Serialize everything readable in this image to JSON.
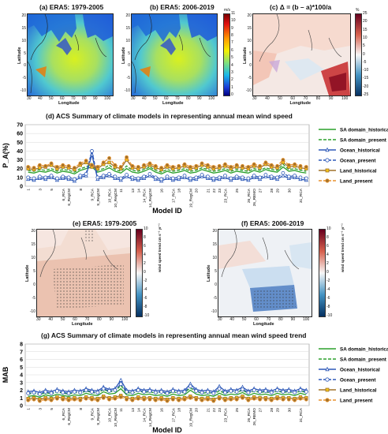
{
  "panels": {
    "a": {
      "title": "(a) ERA5: 1979-2005"
    },
    "b": {
      "title": "(b) ERA5: 2006-2019"
    },
    "c": {
      "title": "(c) Δ = (b – a)*100/a"
    },
    "e": {
      "title": "(e) ERA5: 1979-2005"
    },
    "f": {
      "title": "(f) ERA5: 2006-2019"
    }
  },
  "map_axes": {
    "x_ticks": [
      "30",
      "40",
      "50",
      "60",
      "70",
      "80",
      "90",
      "100"
    ],
    "y_ticks": [
      "20",
      "15",
      "10",
      "5",
      "0",
      "-5",
      "-10"
    ],
    "xlabel": "Longitude",
    "ylabel": "Latitude"
  },
  "colorbars": {
    "speed": {
      "unit": "m/s",
      "ticks": [
        "11",
        "10",
        "9",
        "8",
        "7",
        "6",
        "5",
        "4",
        "3",
        "2",
        "1",
        "0"
      ]
    },
    "change": {
      "unit": "%",
      "ticks": [
        "25",
        "20",
        "15",
        "10",
        "5",
        "0",
        "-5",
        "-10",
        "-15",
        "-20",
        "-25"
      ]
    },
    "trend_e": {
      "label": "wind speed trend   cm s⁻¹ yr⁻¹",
      "ticks": [
        "10",
        "8",
        "6",
        "4",
        "2",
        "0",
        "-2",
        "-4",
        "-6",
        "-8",
        "-10"
      ]
    },
    "trend_f": {
      "label": "wind speed trend   cm s⁻¹ yr⁻¹",
      "ticks": [
        "10",
        "8",
        "6",
        "4",
        "2",
        "0",
        "-2",
        "-4",
        "-6",
        "-8",
        "-10"
      ]
    }
  },
  "legend_labels": {
    "sa_hist": "SA domain_historical",
    "sa_pres": "SA domain_present",
    "oc_hist": "Ocean_historical",
    "oc_pres": "Ocean_present",
    "la_hist": "Land_historical",
    "la_pres": "Land_present"
  },
  "colors": {
    "sa": "#2ca02c",
    "ocean": "#2e59b8",
    "land": "#a0722a",
    "land_pres": "#e8912d",
    "land_fill": "#f5c518"
  },
  "chart_data": [
    {
      "type": "line",
      "title": "(d) ACS Summary of  climate models in representing annual mean wind speed",
      "ylabel": "P_A(%)",
      "xlabel": "Model ID",
      "ylim": [
        0,
        70
      ],
      "yticks": [
        0,
        10,
        20,
        30,
        40,
        50,
        60,
        70
      ],
      "categories": [
        "1",
        "2",
        "3",
        "4",
        "5",
        "6",
        "6_RCA",
        "6_RegCM",
        "7",
        "8",
        "9",
        "9_RCA",
        "9_RegCM",
        "10",
        "10_RCA",
        "10_RegCM",
        "11",
        "12",
        "13",
        "14",
        "14_RCA",
        "14_RegCM",
        "15",
        "16",
        "17",
        "17_RCA",
        "18",
        "19",
        "19_RegCM",
        "20",
        "20_RCA",
        "21",
        "22",
        "23",
        "23_RCA",
        "24",
        "25",
        "26",
        "26_RCA",
        "26_REMO",
        "27",
        "27_RegCM",
        "28",
        "29",
        "29_RCA",
        "30",
        "31",
        "31_RCA",
        "32"
      ],
      "category_labels_shown": [
        "1",
        "3",
        "5",
        "6_RCA",
        "6_RegCM",
        "8",
        "9_RCA",
        "9_RegCM",
        "10_RCA",
        "10_RegCM",
        "11",
        "13",
        "14",
        "14_RCA",
        "14_RegCM",
        "16",
        "17_RCA",
        "18",
        "19_RegCM",
        "20",
        "21",
        "22",
        "23",
        "23_RCA",
        "25",
        "26_RCA",
        "26_REMO",
        "27",
        "28",
        "29",
        "30",
        "31_RCA"
      ],
      "series": [
        {
          "name": "SA domain_historical",
          "values": [
            16,
            15,
            17,
            16,
            18,
            15,
            17,
            16,
            14,
            18,
            20,
            22,
            16,
            18,
            21,
            17,
            15,
            20,
            16,
            15,
            17,
            20,
            16,
            14,
            17,
            15,
            16,
            18,
            15,
            16,
            19,
            17,
            15,
            16,
            18,
            15,
            17,
            16,
            15,
            18,
            16,
            19,
            17,
            16,
            22,
            17,
            18,
            16,
            15
          ]
        },
        {
          "name": "SA domain_present",
          "values": [
            18,
            17,
            19,
            18,
            20,
            17,
            19,
            18,
            16,
            20,
            22,
            26,
            18,
            20,
            24,
            19,
            17,
            23,
            18,
            17,
            19,
            22,
            18,
            16,
            19,
            17,
            18,
            20,
            17,
            18,
            21,
            19,
            17,
            18,
            20,
            17,
            19,
            18,
            17,
            20,
            18,
            21,
            19,
            18,
            25,
            19,
            20,
            18,
            17
          ]
        },
        {
          "name": "Ocean_historical",
          "values": [
            8,
            7,
            9,
            8,
            10,
            7,
            9,
            8,
            6,
            10,
            12,
            36,
            8,
            10,
            12,
            9,
            7,
            11,
            8,
            7,
            9,
            12,
            8,
            6,
            9,
            7,
            8,
            10,
            7,
            8,
            11,
            9,
            7,
            8,
            10,
            7,
            9,
            8,
            7,
            10,
            8,
            11,
            9,
            8,
            12,
            9,
            10,
            8,
            7
          ]
        },
        {
          "name": "Ocean_present",
          "values": [
            10,
            9,
            11,
            10,
            12,
            9,
            11,
            10,
            8,
            12,
            14,
            40,
            10,
            12,
            14,
            11,
            9,
            13,
            10,
            9,
            11,
            14,
            10,
            8,
            11,
            9,
            10,
            12,
            9,
            10,
            13,
            11,
            9,
            10,
            12,
            9,
            11,
            10,
            9,
            12,
            10,
            13,
            11,
            10,
            15,
            11,
            12,
            10,
            9
          ]
        },
        {
          "name": "Land_historical",
          "values": [
            20,
            19,
            21,
            22,
            24,
            20,
            22,
            21,
            19,
            24,
            27,
            22,
            20,
            25,
            27,
            22,
            20,
            30,
            21,
            20,
            22,
            24,
            21,
            19,
            22,
            20,
            21,
            23,
            20,
            21,
            24,
            22,
            20,
            21,
            23,
            20,
            22,
            21,
            20,
            23,
            21,
            25,
            22,
            21,
            27,
            22,
            23,
            21,
            20
          ]
        },
        {
          "name": "Land_present",
          "values": [
            22,
            21,
            24,
            23,
            26,
            22,
            24,
            23,
            21,
            26,
            29,
            24,
            22,
            27,
            32,
            24,
            22,
            33,
            23,
            22,
            24,
            26,
            23,
            21,
            24,
            22,
            23,
            25,
            22,
            23,
            26,
            24,
            22,
            23,
            25,
            22,
            24,
            23,
            22,
            25,
            23,
            27,
            24,
            23,
            30,
            24,
            25,
            23,
            22
          ]
        }
      ]
    },
    {
      "type": "line",
      "title": "(g) ACS Summary of  climate models in representing annual mean wind speed trend",
      "ylabel": "MAB",
      "xlabel": "Model ID",
      "ylim": [
        0,
        8
      ],
      "yticks": [
        0,
        1,
        2,
        3,
        4,
        5,
        6,
        7,
        8
      ],
      "categories": [
        "1",
        "2",
        "3",
        "4",
        "5",
        "6",
        "6_RCA",
        "6_RegCM",
        "7",
        "8",
        "9",
        "9_RCA",
        "9_RegCM",
        "10",
        "10_RCA",
        "10_RegCM",
        "11",
        "12",
        "13",
        "14",
        "14_RCA",
        "14_RegCM",
        "15",
        "16",
        "17",
        "17_RCA",
        "18",
        "19",
        "19_RegCM",
        "20",
        "20_RCA",
        "21",
        "22",
        "23",
        "23_RCA",
        "24",
        "25",
        "26",
        "26_RCA",
        "26_REMO",
        "27",
        "27_RegCM",
        "28",
        "29",
        "29_RCA",
        "30",
        "31",
        "31_RCA",
        "32"
      ],
      "category_labels_shown": [
        "1",
        "3",
        "5",
        "6_RCA",
        "6_RegCM",
        "8",
        "9_RCA",
        "9_RegCM",
        "10_RCA",
        "10_RegCM",
        "11",
        "13",
        "14",
        "14_RCA",
        "14_RegCM",
        "16",
        "17_RCA",
        "18",
        "19_RegCM",
        "20",
        "21",
        "22",
        "23",
        "23_RCA",
        "25",
        "26_RCA",
        "26_REMO",
        "27",
        "28",
        "29",
        "30",
        "31_RCA"
      ],
      "series": [
        {
          "name": "SA domain_historical",
          "values": [
            1.2,
            1.3,
            1.1,
            1.4,
            1.2,
            1.5,
            1.3,
            1.2,
            1.4,
            1.3,
            1.6,
            1.4,
            1.3,
            1.8,
            1.5,
            1.6,
            2.2,
            1.4,
            1.3,
            1.6,
            1.4,
            1.5,
            1.3,
            1.4,
            1.2,
            1.5,
            1.3,
            1.4,
            2.0,
            1.5,
            1.3,
            1.4,
            1.2,
            1.6,
            1.3,
            1.5,
            1.4,
            1.7,
            1.3,
            1.6,
            1.4,
            1.5,
            1.3,
            1.6,
            1.4,
            1.5,
            1.3,
            1.6,
            1.4
          ]
        },
        {
          "name": "SA domain_present",
          "values": [
            1.5,
            1.6,
            1.4,
            1.7,
            1.5,
            1.8,
            1.6,
            1.5,
            1.7,
            1.6,
            1.9,
            1.7,
            1.6,
            2.1,
            1.8,
            1.9,
            2.6,
            1.7,
            1.6,
            1.9,
            1.7,
            1.8,
            1.6,
            1.7,
            1.5,
            1.8,
            1.6,
            1.7,
            2.3,
            1.8,
            1.6,
            1.7,
            1.5,
            1.9,
            1.6,
            1.8,
            1.7,
            2.0,
            1.6,
            1.9,
            1.7,
            1.8,
            1.6,
            1.9,
            1.7,
            1.8,
            1.6,
            1.9,
            1.7
          ]
        },
        {
          "name": "Ocean_historical",
          "values": [
            1.8,
            1.9,
            1.7,
            2.0,
            1.8,
            2.1,
            1.9,
            1.8,
            2.0,
            1.9,
            2.2,
            2.0,
            1.9,
            2.4,
            2.1,
            2.2,
            3.3,
            2.0,
            1.9,
            2.2,
            2.0,
            2.1,
            1.9,
            2.0,
            1.8,
            2.1,
            1.9,
            2.0,
            2.8,
            2.1,
            1.9,
            2.0,
            1.8,
            2.5,
            1.9,
            2.1,
            2.0,
            2.4,
            1.9,
            2.2,
            2.0,
            2.1,
            1.9,
            2.2,
            2.0,
            2.1,
            1.9,
            2.2,
            2.0
          ]
        },
        {
          "name": "Ocean_present",
          "values": [
            1.6,
            1.7,
            1.5,
            1.8,
            1.6,
            1.9,
            1.7,
            1.6,
            1.8,
            1.7,
            2.0,
            1.8,
            1.7,
            2.2,
            1.9,
            2.0,
            2.8,
            1.8,
            1.7,
            2.0,
            1.8,
            1.9,
            1.7,
            1.8,
            1.6,
            1.9,
            1.7,
            1.8,
            2.5,
            1.9,
            1.7,
            1.8,
            1.6,
            2.2,
            1.7,
            1.9,
            1.8,
            2.1,
            1.7,
            2.0,
            1.8,
            1.9,
            1.7,
            2.0,
            1.8,
            1.9,
            1.7,
            2.0,
            1.8
          ]
        },
        {
          "name": "Land_historical",
          "values": [
            0.9,
            1.0,
            0.8,
            1.0,
            0.9,
            1.1,
            1.0,
            0.9,
            1.0,
            0.9,
            1.1,
            1.0,
            0.9,
            1.2,
            1.0,
            1.1,
            1.3,
            1.0,
            0.9,
            1.1,
            1.0,
            1.0,
            0.9,
            1.0,
            0.8,
            1.0,
            0.9,
            1.0,
            1.2,
            1.0,
            0.9,
            1.0,
            0.8,
            1.1,
            0.9,
            1.0,
            1.0,
            1.2,
            0.9,
            1.1,
            1.0,
            1.0,
            0.9,
            1.1,
            1.0,
            1.0,
            0.9,
            1.1,
            1.0
          ]
        },
        {
          "name": "Land_present",
          "values": [
            0.7,
            0.8,
            0.6,
            0.8,
            0.7,
            0.9,
            0.8,
            0.7,
            0.8,
            0.7,
            0.9,
            0.8,
            0.7,
            1.0,
            0.8,
            0.9,
            1.1,
            0.8,
            0.7,
            0.9,
            0.8,
            0.8,
            0.7,
            0.8,
            0.6,
            0.8,
            0.7,
            0.8,
            1.0,
            0.8,
            0.7,
            0.8,
            0.6,
            0.9,
            0.7,
            0.8,
            0.8,
            1.0,
            0.7,
            0.9,
            0.8,
            0.8,
            0.7,
            0.9,
            0.8,
            0.8,
            0.7,
            0.9,
            0.8
          ]
        }
      ]
    }
  ]
}
